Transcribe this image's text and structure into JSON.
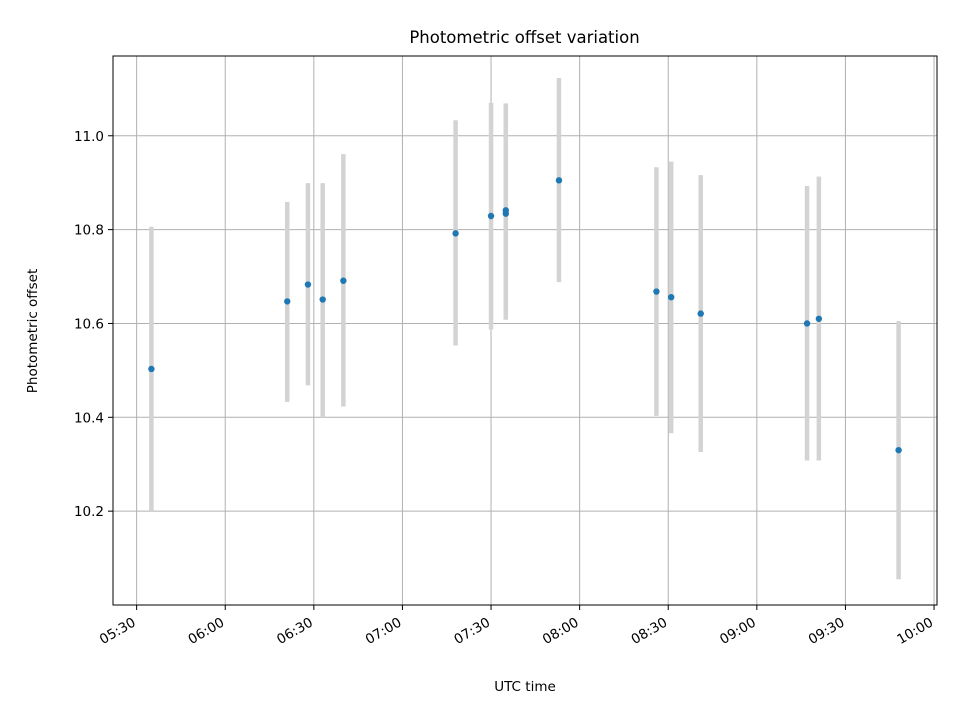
{
  "chart_data": {
    "type": "scatter",
    "title": "Photometric offset variation",
    "xlabel": "UTC time",
    "ylabel": "Photometric offset",
    "xlim": [
      "05:22",
      "10:01"
    ],
    "ylim": [
      10.0,
      11.17
    ],
    "grid": true,
    "x_ticks": [
      "05:30",
      "06:00",
      "06:30",
      "07:00",
      "07:30",
      "08:00",
      "08:30",
      "09:00",
      "09:30",
      "10:00"
    ],
    "y_ticks": [
      "10.2",
      "10.4",
      "10.6",
      "10.8",
      "11.0"
    ],
    "points": [
      {
        "x": "05:35",
        "y": 10.503,
        "err_low": 10.2,
        "err_high": 10.806
      },
      {
        "x": "06:21",
        "y": 10.647,
        "err_low": 10.433,
        "err_high": 10.859
      },
      {
        "x": "06:28",
        "y": 10.683,
        "err_low": 10.468,
        "err_high": 10.899
      },
      {
        "x": "06:33",
        "y": 10.651,
        "err_low": 10.4,
        "err_high": 10.899
      },
      {
        "x": "06:40",
        "y": 10.691,
        "err_low": 10.423,
        "err_high": 10.961
      },
      {
        "x": "07:18",
        "y": 10.792,
        "err_low": 10.553,
        "err_high": 11.033
      },
      {
        "x": "07:30",
        "y": 10.829,
        "err_low": 10.587,
        "err_high": 11.07
      },
      {
        "x": "07:35",
        "y": 10.834,
        "err_low": 10.617,
        "err_high": 11.069
      },
      {
        "x": "07:35",
        "y": 10.841,
        "err_low": 10.608,
        "err_high": 11.068
      },
      {
        "x": "07:53",
        "y": 10.905,
        "err_low": 10.688,
        "err_high": 11.123
      },
      {
        "x": "08:26",
        "y": 10.668,
        "err_low": 10.403,
        "err_high": 10.933
      },
      {
        "x": "08:31",
        "y": 10.656,
        "err_low": 10.366,
        "err_high": 10.945
      },
      {
        "x": "08:41",
        "y": 10.621,
        "err_low": 10.326,
        "err_high": 10.916
      },
      {
        "x": "09:17",
        "y": 10.6,
        "err_low": 10.308,
        "err_high": 10.893
      },
      {
        "x": "09:21",
        "y": 10.61,
        "err_low": 10.308,
        "err_high": 10.913
      },
      {
        "x": "09:48",
        "y": 10.33,
        "err_low": 10.055,
        "err_high": 10.605
      }
    ]
  }
}
